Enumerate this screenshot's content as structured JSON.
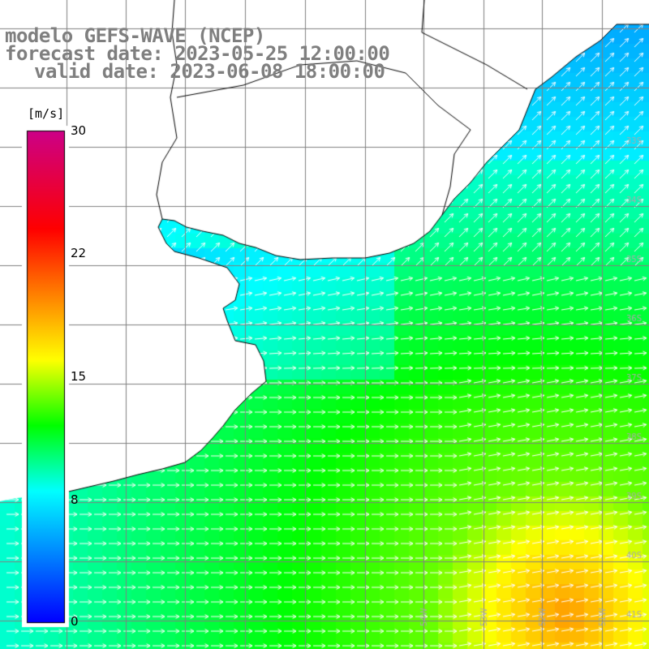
{
  "header": {
    "model": "modelo GEFS-WAVE (NCEP)",
    "forecast": "forecast date: 2023-05-25 12:00:00",
    "valid": "valid date: 2023-06-08 18:00:00"
  },
  "colorbar": {
    "unit": "[m/s]",
    "ticks": [
      "30",
      "22",
      "15",
      "8",
      "0"
    ],
    "tick_values": [
      30,
      22,
      15,
      8,
      0
    ],
    "min": 0,
    "max": 30,
    "colors": [
      "#0000ff",
      "#0080ff",
      "#00ffff",
      "#00ff00",
      "#ffff00",
      "#ff8000",
      "#ff0000",
      "#cc0088"
    ]
  },
  "map": {
    "lon_labels": [
      "54W",
      "53W",
      "52W",
      "51W"
    ],
    "lat_labels": [
      "33S",
      "34S",
      "35S",
      "36S",
      "37S",
      "38S",
      "39S",
      "40S",
      "41S"
    ],
    "land_color": "#ffffff",
    "grid_color": "#808080",
    "arrow_color": "#ffffff",
    "dominant_direction": "west-to-east (toward northeast in the north)"
  }
}
